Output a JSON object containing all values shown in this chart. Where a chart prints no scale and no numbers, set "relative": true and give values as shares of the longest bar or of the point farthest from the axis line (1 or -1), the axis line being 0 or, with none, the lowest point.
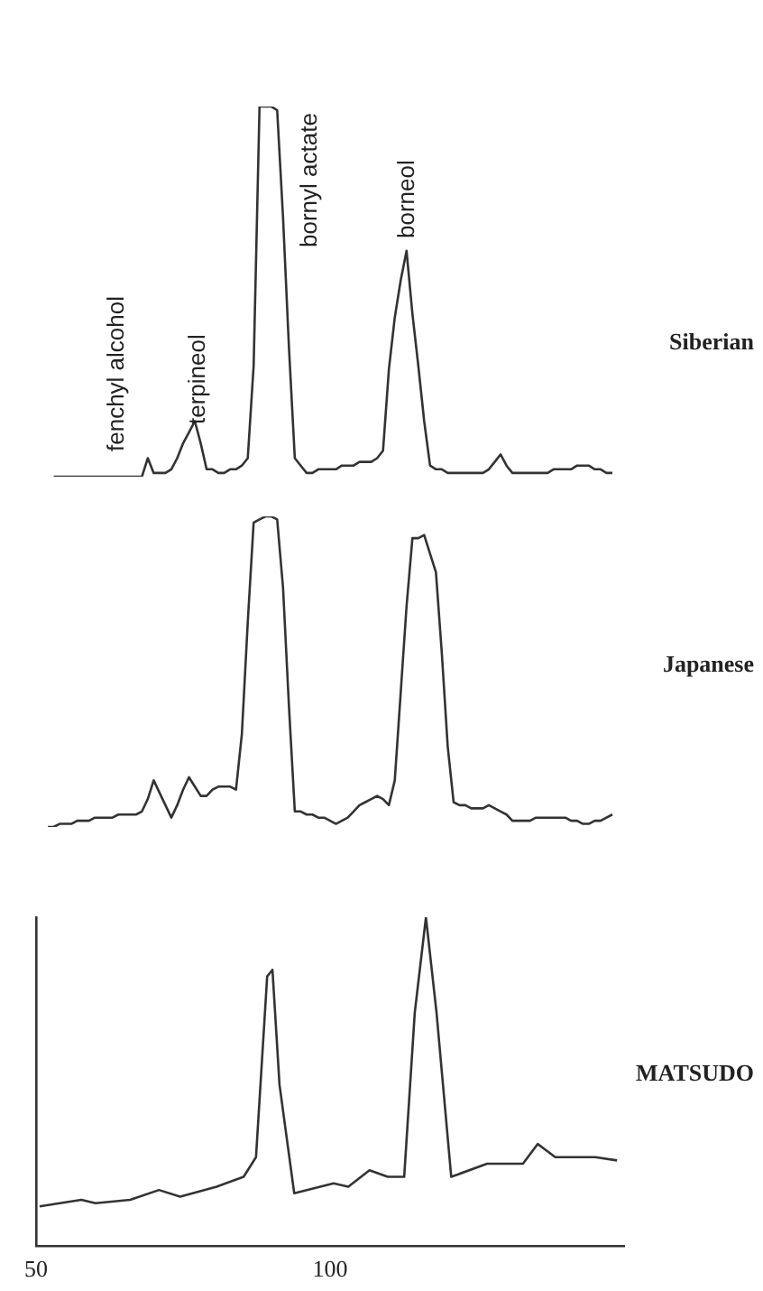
{
  "chart_data": [
    {
      "type": "line",
      "relative": true,
      "tick_labels": false,
      "grid": false,
      "legend": false,
      "marker": "none",
      "categories": [
        null,
        null,
        null,
        null,
        null,
        null,
        null,
        null,
        null,
        null,
        null,
        null,
        null,
        null,
        null,
        null,
        null,
        null,
        null,
        null,
        null,
        null,
        null,
        null,
        null,
        null,
        null,
        null,
        null,
        null,
        null,
        null,
        null,
        null,
        null,
        null,
        null,
        null,
        null,
        null,
        null,
        null,
        null,
        null,
        null,
        null,
        null,
        null,
        null,
        null,
        null,
        null,
        null,
        null,
        null,
        null,
        null,
        null,
        null,
        null,
        null,
        null,
        null,
        null,
        null,
        null,
        null,
        null,
        null,
        null,
        null,
        null,
        null,
        null,
        null,
        null,
        null,
        null,
        null,
        null,
        null,
        null,
        null,
        null,
        null,
        null,
        null,
        null,
        null,
        null,
        null,
        null,
        null,
        null,
        null,
        null,
        null,
        null,
        null,
        null,
        null
      ],
      "series": [
        {
          "name": "Siberian",
          "color": "#333333",
          "values": [
            null,
            null,
            null,
            0,
            0,
            0,
            0,
            0,
            0,
            0,
            0,
            0,
            0,
            0,
            0,
            0,
            0,
            0,
            0,
            0.05,
            0.01,
            0.01,
            0.01,
            0.02,
            0.05,
            0.09,
            0.12,
            0.15,
            0.09,
            0.02,
            0.02,
            0.01,
            0.01,
            0.02,
            0.02,
            0.03,
            0.05,
            0.3,
            1,
            1,
            1,
            0.99,
            0.7,
            0.35,
            0.05,
            0.03,
            0.01,
            0.01,
            0.02,
            0.02,
            0.02,
            0.02,
            0.03,
            0.03,
            0.03,
            0.04,
            0.04,
            0.04,
            0.05,
            0.07,
            0.29,
            0.43,
            0.53,
            0.61,
            0.44,
            0.3,
            0.15,
            0.03,
            0.02,
            0.02,
            0.01,
            0.01,
            0.01,
            0.01,
            0.01,
            0.01,
            0.01,
            0.02,
            0.04,
            0.06,
            0.03,
            0.01,
            0.01,
            0.01,
            0.01,
            0.01,
            0.01,
            0.01,
            0.02,
            0.02,
            0.02,
            0.02,
            0.03,
            0.03,
            0.03,
            0.02,
            0.02,
            0.01,
            0.01,
            null,
            null
          ]
        }
      ],
      "annotations": [
        "fenchyl alcohol",
        "terpineol",
        "bornyl actate",
        "borneol"
      ]
    },
    {
      "type": "line",
      "relative": true,
      "tick_labels": false,
      "grid": false,
      "legend": false,
      "marker": "none",
      "categories": [
        null,
        null,
        null,
        null,
        null,
        null,
        null,
        null,
        null,
        null,
        null,
        null,
        null,
        null,
        null,
        null,
        null,
        null,
        null,
        null,
        null,
        null,
        null,
        null,
        null,
        null,
        null,
        null,
        null,
        null,
        null,
        null,
        null,
        null,
        null,
        null,
        null,
        null,
        null,
        null,
        null,
        null,
        null,
        null,
        null,
        null,
        null,
        null,
        null,
        null,
        null,
        null,
        null,
        null,
        null,
        null,
        null,
        null,
        null,
        null,
        null,
        null,
        null,
        null,
        null,
        null,
        null,
        null,
        null,
        null,
        null,
        null,
        null,
        null,
        null,
        null,
        null,
        null,
        null,
        null,
        null,
        null,
        null,
        null,
        null,
        null,
        null,
        null,
        null,
        null,
        null,
        null,
        null,
        null,
        null,
        null,
        null,
        null,
        null,
        null,
        null
      ],
      "series": [
        {
          "name": "Japanese",
          "color": "#333333",
          "values": [
            null,
            null,
            0,
            0,
            0.01,
            0.01,
            0.01,
            0.02,
            0.02,
            0.02,
            0.03,
            0.03,
            0.03,
            0.03,
            0.04,
            0.04,
            0.04,
            0.04,
            0.05,
            0.09,
            0.15,
            0.11,
            0.07,
            0.03,
            0.07,
            0.12,
            0.16,
            0.13,
            0.1,
            0.1,
            0.12,
            0.13,
            0.13,
            0.13,
            0.12,
            0.3,
            0.66,
            0.98,
            0.99,
            1,
            1,
            0.99,
            0.77,
            0.39,
            0.05,
            0.05,
            0.04,
            0.04,
            0.03,
            0.03,
            0.02,
            0.01,
            0.02,
            0.03,
            0.05,
            0.07,
            0.08,
            0.09,
            0.1,
            0.09,
            0.07,
            0.15,
            0.43,
            0.71,
            0.93,
            0.93,
            0.94,
            0.88,
            0.82,
            0.56,
            0.26,
            0.08,
            0.07,
            0.07,
            0.06,
            0.06,
            0.06,
            0.07,
            0.06,
            0.05,
            0.04,
            0.02,
            0.02,
            0.02,
            0.02,
            0.03,
            0.03,
            0.03,
            0.03,
            0.03,
            0.03,
            0.02,
            0.02,
            0.01,
            0.01,
            0.02,
            0.02,
            0.03,
            0.04,
            null,
            null
          ]
        }
      ]
    },
    {
      "type": "line",
      "relative": true,
      "xlim": [
        50,
        150
      ],
      "xticks": [
        50,
        100
      ],
      "tick_labels": "x",
      "grid": false,
      "legend": false,
      "marker": "none",
      "x": [
        50.6,
        57.7,
        60.1,
        66.0,
        70.9,
        74.5,
        80.7,
        85.3,
        87.4,
        89.3,
        90.2,
        91.4,
        93.9,
        100.6,
        103.1,
        106.7,
        109.8,
        112.6,
        114.4,
        116.3,
        118.1,
        120.6,
        126.7,
        132.8,
        135.3,
        138.3,
        145.1,
        148.8
      ],
      "series": [
        {
          "name": "MATSUDO",
          "color": "#333333",
          "values": [
            0.12,
            0.14,
            0.13,
            0.14,
            0.17,
            0.15,
            0.18,
            0.21,
            0.27,
            0.82,
            0.84,
            0.49,
            0.16,
            0.19,
            0.18,
            0.23,
            0.21,
            0.21,
            0.71,
            1,
            0.71,
            0.21,
            0.25,
            0.25,
            0.31,
            0.27,
            0.27,
            0.26
          ]
        }
      ]
    }
  ]
}
